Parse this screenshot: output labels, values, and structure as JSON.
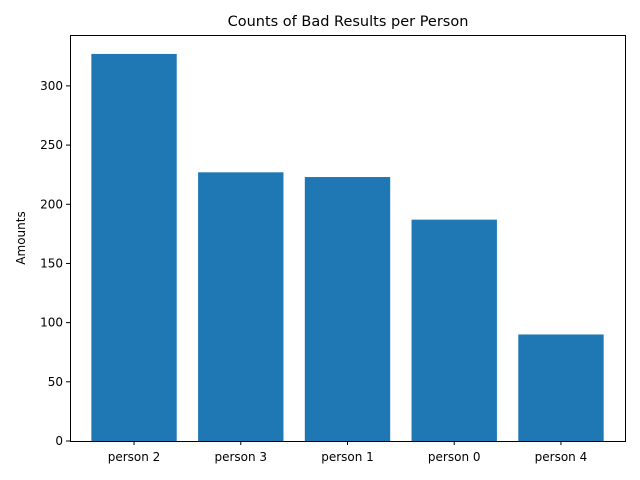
{
  "chart_data": {
    "type": "bar",
    "title": "Counts of Bad Results per Person",
    "xlabel": "",
    "ylabel": "Amounts",
    "categories": [
      "person 2",
      "person 3",
      "person 1",
      "person 0",
      "person 4"
    ],
    "values": [
      327,
      227,
      223,
      187,
      90
    ],
    "ylim": [
      0,
      343
    ],
    "yticks": [
      0,
      50,
      100,
      150,
      200,
      250,
      300
    ],
    "grid": false,
    "legend": "none",
    "bar_color": "#1f77b4"
  }
}
